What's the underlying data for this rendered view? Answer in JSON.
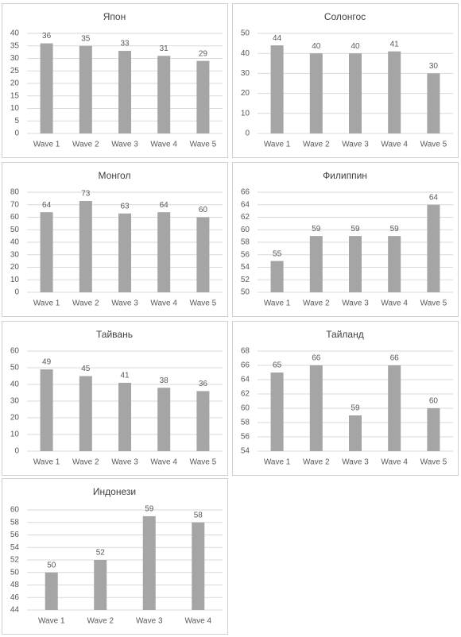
{
  "chart_data": [
    {
      "type": "bar",
      "title": "Япон",
      "categories": [
        "Wave 1",
        "Wave 2",
        "Wave 3",
        "Wave 4",
        "Wave 5"
      ],
      "values": [
        36,
        35,
        33,
        31,
        29
      ],
      "color": "#a5a5a5",
      "ylim": [
        0,
        40
      ],
      "yticks": [
        0,
        5,
        10,
        15,
        20,
        25,
        30,
        35,
        40
      ],
      "grid": true
    },
    {
      "type": "bar",
      "title": "Солонгос",
      "categories": [
        "Wave 1",
        "Wave 2",
        "Wave 3",
        "Wave 4",
        "Wave 5"
      ],
      "values": [
        44,
        40,
        40,
        41,
        30
      ],
      "color": "#a5a5a5",
      "ylim": [
        0,
        50
      ],
      "yticks": [
        0,
        10,
        20,
        30,
        40,
        50
      ],
      "grid": true
    },
    {
      "type": "bar",
      "title": "Монгол",
      "categories": [
        "Wave 1",
        "Wave 2",
        "Wave 3",
        "Wave 4",
        "Wave 5"
      ],
      "values": [
        64,
        73,
        63,
        64,
        60
      ],
      "color": "#a5a5a5",
      "ylim": [
        0,
        80
      ],
      "yticks": [
        0,
        10,
        20,
        30,
        40,
        50,
        60,
        70,
        80
      ],
      "grid": true
    },
    {
      "type": "bar",
      "title": "Филиппин",
      "categories": [
        "Wave 1",
        "Wave 2",
        "Wave 3",
        "Wave 4",
        "Wave 5"
      ],
      "values": [
        55,
        59,
        59,
        59,
        64
      ],
      "color": "#a5a5a5",
      "ylim": [
        50,
        66
      ],
      "yticks": [
        50,
        52,
        54,
        56,
        58,
        60,
        62,
        64,
        66
      ],
      "grid": true
    },
    {
      "type": "bar",
      "title": "Тайвань",
      "categories": [
        "Wave 1",
        "Wave 2",
        "Wave 3",
        "Wave 4",
        "Wave 5"
      ],
      "values": [
        49,
        45,
        41,
        38,
        36
      ],
      "color": "#a5a5a5",
      "ylim": [
        0,
        60
      ],
      "yticks": [
        0,
        10,
        20,
        30,
        40,
        50,
        60
      ],
      "grid": true
    },
    {
      "type": "bar",
      "title": "Тайланд",
      "categories": [
        "Wave 1",
        "Wave 2",
        "Wave 3",
        "Wave 4",
        "Wave 5"
      ],
      "values": [
        65,
        66,
        59,
        66,
        60
      ],
      "color": "#a5a5a5",
      "ylim": [
        54,
        68
      ],
      "yticks": [
        54,
        56,
        58,
        60,
        62,
        64,
        66,
        68
      ],
      "grid": true
    },
    {
      "type": "bar",
      "title": "Индонези",
      "categories": [
        "Wave 1",
        "Wave 2",
        "Wave 3",
        "Wave 4"
      ],
      "values": [
        50,
        52,
        59,
        58
      ],
      "color": "#a5a5a5",
      "ylim": [
        44,
        60
      ],
      "yticks": [
        44,
        46,
        48,
        50,
        52,
        54,
        56,
        58,
        60
      ],
      "grid": true
    }
  ]
}
